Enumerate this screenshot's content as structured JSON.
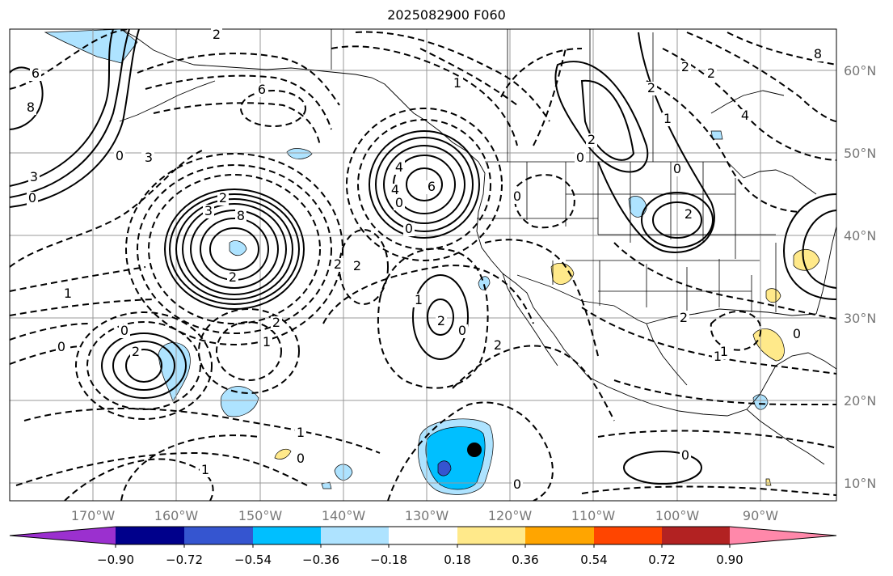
{
  "title": "2025082900 F060",
  "map": {
    "lon_labels": [
      "170°W",
      "160°W",
      "150°W",
      "140°W",
      "130°W",
      "120°W",
      "110°W",
      "100°W",
      "90°W"
    ],
    "lat_labels": [
      "60°N",
      "50°N",
      "40°N",
      "30°N",
      "20°N",
      "10°N"
    ],
    "contour_labels": [
      "2",
      "6",
      "8",
      "3",
      "0",
      "2",
      "0",
      "3",
      "6",
      "2",
      "4",
      "6",
      "8",
      "3",
      "2",
      "0",
      "4",
      "0",
      "2",
      "2",
      "1",
      "2",
      "0",
      "1",
      "2",
      "0",
      "3",
      "1",
      "2",
      "0",
      "1",
      "1",
      "0",
      "2",
      "0",
      "0",
      "1",
      "2",
      "0",
      "2",
      "2",
      "1",
      "0",
      "1",
      "0",
      "4",
      "2",
      "0",
      "2",
      "1",
      "2",
      "8"
    ],
    "marker": "storm-center-dot"
  },
  "colorbar": {
    "tick_labels": [
      "−0.90",
      "−0.72",
      "−0.54",
      "−0.36",
      "−0.18",
      "0.18",
      "0.36",
      "0.54",
      "0.72",
      "0.90"
    ],
    "colors": [
      "#9b30cf",
      "#00008b",
      "#3555d0",
      "#00bfff",
      "#aee3ff",
      "#ffffff",
      "#ffe98a",
      "#ffa500",
      "#ff4500",
      "#b22222",
      "#ff88aa"
    ]
  }
}
